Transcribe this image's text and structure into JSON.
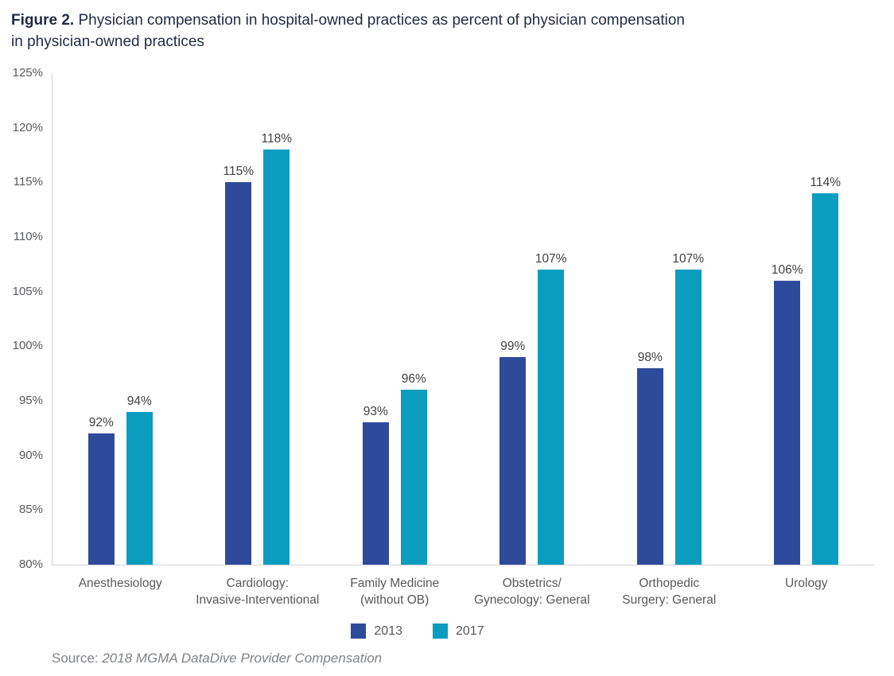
{
  "figure": {
    "title_prefix": "Figure 2.",
    "title_line1_rest": " Physician compensation in hospital-owned practices as percent of physician compensation",
    "title_line2": "in physician-owned practices",
    "source_label": "Source:",
    "source_text": "2018 MGMA DataDive Provider Compensation"
  },
  "chart_data": {
    "type": "bar",
    "title": "Figure 2. Physician compensation in hospital-owned practices as percent of physician compensation in physician-owned practices",
    "categories": [
      "Anesthesiology",
      "Cardiology:\nInvasive-Interventional",
      "Family Medicine\n(without OB)",
      "Obstetrics/\nGynecology: General",
      "Orthopedic\nSurgery: General",
      "Urology"
    ],
    "series": [
      {
        "name": "2013",
        "color": "#2e4b9b",
        "values": [
          92,
          115,
          93,
          99,
          98,
          106
        ]
      },
      {
        "name": "2017",
        "color": "#0b9dc0",
        "values": [
          94,
          118,
          96,
          107,
          107,
          114
        ]
      }
    ],
    "xlabel": "",
    "ylabel": "",
    "ylim": [
      80,
      125
    ],
    "ytick_step": 5,
    "ytick_suffix": "%",
    "value_label_suffix": "%",
    "grid": false,
    "legend_position": "bottom",
    "source": "2018 MGMA DataDive Provider Compensation"
  }
}
